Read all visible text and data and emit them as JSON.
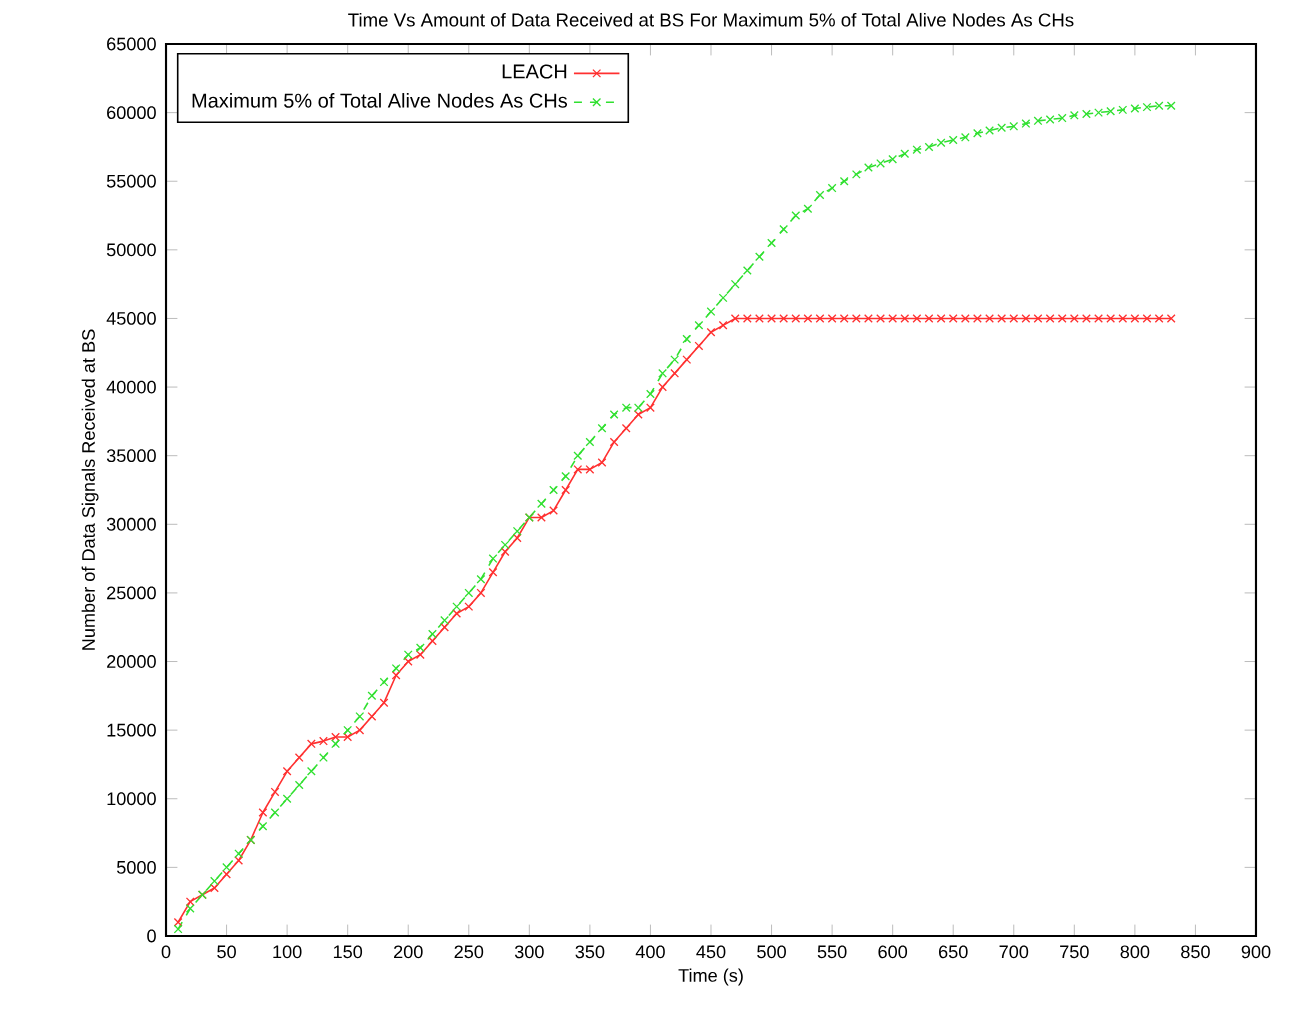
{
  "chart_data": {
    "type": "line",
    "title": "Time Vs Amount of Data Received at BS For Maximum 5% of Total Alive Nodes As CHs",
    "xlabel": "Time (s)",
    "ylabel": "Number of Data Signals Received at BS",
    "xlim": [
      0,
      900
    ],
    "xticks": [
      0,
      50,
      100,
      150,
      200,
      250,
      300,
      350,
      400,
      450,
      500,
      550,
      600,
      650,
      700,
      750,
      800,
      850,
      900
    ],
    "ylim": [
      0,
      65000
    ],
    "yticks": [
      0,
      5000,
      10000,
      15000,
      20000,
      25000,
      30000,
      35000,
      40000,
      45000,
      50000,
      55000,
      60000,
      65000
    ],
    "legend": "top left",
    "grid": false,
    "x": [
      10,
      20,
      30,
      40,
      50,
      60,
      70,
      80,
      90,
      100,
      110,
      120,
      130,
      140,
      150,
      160,
      170,
      180,
      190,
      200,
      210,
      220,
      230,
      240,
      250,
      260,
      270,
      280,
      290,
      300,
      310,
      320,
      330,
      340,
      350,
      360,
      370,
      380,
      390,
      400,
      410,
      420,
      430,
      440,
      450,
      460,
      470,
      480,
      490,
      500,
      510,
      520,
      530,
      540,
      550,
      560,
      570,
      580,
      590,
      600,
      610,
      620,
      630,
      640,
      650,
      660,
      670,
      680,
      690,
      700,
      710,
      720,
      730,
      740,
      750,
      760,
      770,
      780,
      790,
      800,
      810,
      820,
      830
    ],
    "series": [
      {
        "name": "LEACH",
        "color": "#ff3030",
        "marker": "cross",
        "line_style": "solid",
        "values": [
          1000,
          2500,
          3000,
          3500,
          4500,
          5500,
          7000,
          9000,
          10500,
          12000,
          13000,
          14000,
          14200,
          14500,
          14500,
          15000,
          16000,
          17000,
          19000,
          20000,
          20500,
          21500,
          22500,
          23500,
          24000,
          25000,
          26500,
          28000,
          29000,
          30500,
          30500,
          31000,
          32500,
          34000,
          34000,
          34500,
          36000,
          37000,
          38000,
          38500,
          40000,
          41000,
          42000,
          43000,
          44000,
          44500,
          45000,
          45000,
          45000,
          45000,
          45000,
          45000,
          45000,
          45000,
          45000,
          45000,
          45000,
          45000,
          45000,
          45000,
          45000,
          45000,
          45000,
          45000,
          45000,
          45000,
          45000,
          45000,
          45000,
          45000,
          45000,
          45000,
          45000,
          45000,
          45000,
          45000,
          45000,
          45000,
          45000,
          45000,
          45000,
          45000,
          45000
        ]
      },
      {
        "name": "Maximum 5% of Total Alive Nodes As CHs",
        "color": "#30e030",
        "marker": "cross",
        "line_style": "dashed",
        "values": [
          500,
          2000,
          3000,
          4000,
          5000,
          6000,
          7000,
          8000,
          9000,
          10000,
          11000,
          12000,
          13000,
          14000,
          15000,
          16000,
          17500,
          18500,
          19500,
          20500,
          21000,
          22000,
          23000,
          24000,
          25000,
          26000,
          27500,
          28500,
          29500,
          30500,
          31500,
          32500,
          33500,
          35000,
          36000,
          37000,
          38000,
          38500,
          38500,
          39500,
          41000,
          42000,
          43500,
          44500,
          45500,
          46500,
          47500,
          48500,
          49500,
          50500,
          51500,
          52500,
          53000,
          54000,
          54500,
          55000,
          55500,
          56000,
          56300,
          56600,
          57000,
          57300,
          57500,
          57800,
          58000,
          58200,
          58500,
          58700,
          58900,
          59000,
          59200,
          59400,
          59500,
          59600,
          59800,
          59900,
          60000,
          60100,
          60200,
          60300,
          60400,
          60500,
          60500
        ]
      }
    ]
  }
}
